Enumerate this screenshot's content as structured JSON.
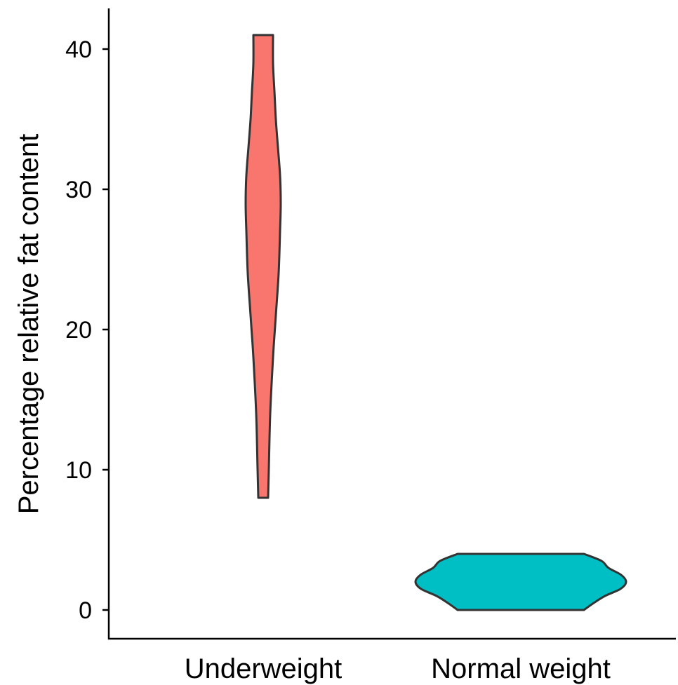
{
  "chart_data": {
    "type": "violin",
    "categories": [
      "Underweight",
      "Normal weight"
    ],
    "ylabel": "Percentage relative fat content",
    "xlabel": "",
    "ylim": [
      -2,
      43
    ],
    "yticks": [
      0,
      10,
      20,
      30,
      40
    ],
    "grid": false,
    "legend": "none",
    "series": [
      {
        "category": "Underweight",
        "color": "#F8766D",
        "min": 8,
        "max": 41,
        "density_profile": [
          {
            "y": 8,
            "w": 0.07
          },
          {
            "y": 10,
            "w": 0.08
          },
          {
            "y": 14,
            "w": 0.1
          },
          {
            "y": 18,
            "w": 0.14
          },
          {
            "y": 21,
            "w": 0.18
          },
          {
            "y": 24,
            "w": 0.22
          },
          {
            "y": 27,
            "w": 0.24
          },
          {
            "y": 29,
            "w": 0.25
          },
          {
            "y": 31,
            "w": 0.24
          },
          {
            "y": 33,
            "w": 0.21
          },
          {
            "y": 35,
            "w": 0.18
          },
          {
            "y": 37,
            "w": 0.16
          },
          {
            "y": 39,
            "w": 0.14
          },
          {
            "y": 41,
            "w": 0.14
          }
        ]
      },
      {
        "category": "Normal weight",
        "color": "#00BFC4",
        "min": 0,
        "max": 4,
        "density_profile": [
          {
            "y": 0,
            "w": 0.9
          },
          {
            "y": 0.5,
            "w": 1.04
          },
          {
            "y": 1,
            "w": 1.2
          },
          {
            "y": 1.5,
            "w": 1.42
          },
          {
            "y": 2,
            "w": 1.5
          },
          {
            "y": 2.5,
            "w": 1.43
          },
          {
            "y": 3,
            "w": 1.25
          },
          {
            "y": 3.5,
            "w": 1.15
          },
          {
            "y": 4,
            "w": 0.9
          }
        ]
      }
    ]
  }
}
